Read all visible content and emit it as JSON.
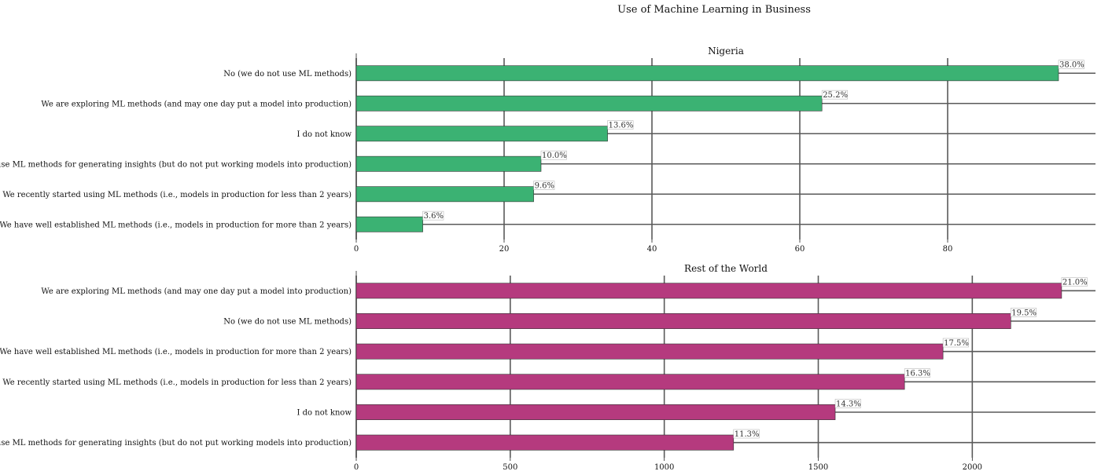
{
  "suptitle": "Use of Machine Learning in Business",
  "chart_data": [
    {
      "type": "bar",
      "orientation": "horizontal",
      "title": "Nigeria",
      "color": "#3bb273",
      "categories": [
        "No (we do not use ML methods)",
        "We are exploring ML methods (and may one day put a model into production)",
        "I do not know",
        "We use ML methods for generating insights (but do not put working models into production)",
        "We recently started using ML methods (i.e., models in production for less than 2 years)",
        "We have well established ML methods (i.e., models in production for more than 2 years)"
      ],
      "values": [
        95,
        63,
        34,
        25,
        24,
        9
      ],
      "data_labels": [
        "38.0%",
        "25.2%",
        "13.6%",
        "10.0%",
        "9.6%",
        "3.6%"
      ],
      "xticks": [
        0,
        20,
        40,
        60,
        80
      ],
      "xlim": [
        0,
        100
      ],
      "grid": true
    },
    {
      "type": "bar",
      "orientation": "horizontal",
      "title": "Rest of the World",
      "color": "#b53a7e",
      "categories": [
        "We are exploring ML methods (and may one day put a model into production)",
        "No (we do not use ML methods)",
        "We have well established ML methods (i.e., models in production for more than 2 years)",
        "We recently started using ML methods (i.e., models in production for less than 2 years)",
        "I do not know",
        "We use ML methods for generating insights (but do not put working models into production)"
      ],
      "values": [
        2290,
        2125,
        1905,
        1780,
        1555,
        1225
      ],
      "data_labels": [
        "21.0%",
        "19.5%",
        "17.5%",
        "16.3%",
        "14.3%",
        "11.3%"
      ],
      "xticks": [
        0,
        500,
        1000,
        1500,
        2000
      ],
      "xlim": [
        0,
        2400
      ],
      "grid": true
    }
  ]
}
